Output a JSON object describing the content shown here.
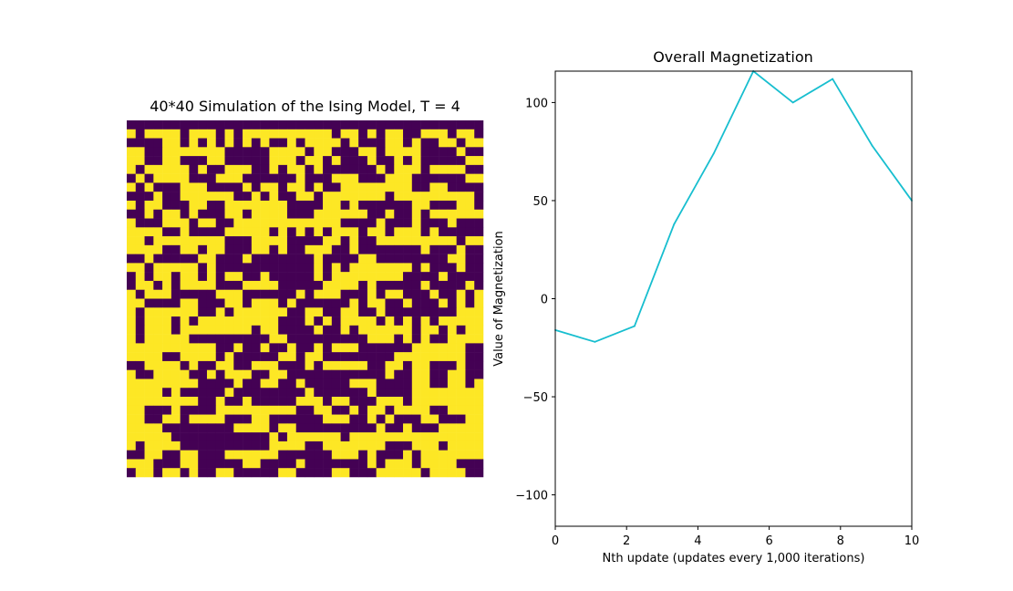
{
  "chart_data": [
    {
      "type": "heatmap",
      "title": "40*40 Simulation of the Ising Model, T = 4",
      "axes": "off",
      "grid_size": [
        40,
        40
      ],
      "colors": {
        "up": "#fde725",
        "down": "#440154"
      },
      "rows": [
        "0000000000000000000000000000000000000000",
        "1011110111010111111111101101011001110110",
        "0000110101010101001011110100011010011011",
        "1100111111100000111101100011011110000100",
        "1100110001100000111011010001001010000011",
        "1011111010011100101101000000101110111100",
        "0101111000111000000100011100011100000011",
        "1010001110000101101101001111111100110000",
        "0001001111110010100110111111101111111110",
        "1011000110011111110000110100000011000110",
        "0010110100011011110001111110010010111111",
        "1000111011001111111111110000100010001000",
        "1111001000011111010101011101101110100000",
        "1101111111100011110000110100111111111011",
        "1111001101100011010011100100000001000100",
        "0010000011000100000001000011000000001100",
        "1101111101000000000001010111111101000100",
        "0101101101011001000001011111111000010000",
        "0110101111000111100000111101000001000010",
        "1011100000111000000101110001011000100101",
        "1100001100011011101000000101100100010101",
        "1011111100101111110011001100100000000111",
        "1011101011111111100010101111010101011111",
        "1011101111111101100001001011111101101011",
        "1011111000000000110000000001110101001111",
        "1111111111001001001001011100000011111100",
        "1111001111010000011011000000001111111100",
        "0011110100110011100010111110011011000100",
        "1001111001011100110000000000010011001100",
        "1111111100001001100100000111000011001101",
        "1111010000010000000010000001000011111111",
        "1111111100100100000111011000111011111111",
        "1100010000111111111001100101101111001111",
        "1100110111100011000000111001010001100011",
        "1111000000001111011000000000100100011111",
        "1111100000000000101111110111111111111111",
        "1011110000000000111100111111100011101111",
        "0011001100011111100000011101000101111111",
        "1110001100000110000100000001011101111000",
        "0110110100110000011000011000111110111100"
      ]
    },
    {
      "type": "line",
      "title": "Overall Magnetization",
      "xlabel": "Nth update (updates every 1,000 iterations)",
      "ylabel": "Value of Magnetization",
      "xlim": [
        0,
        10
      ],
      "ylim": [
        -116,
        116
      ],
      "xticks": [
        0,
        2,
        4,
        6,
        8,
        10
      ],
      "yticks": [
        -100,
        -50,
        0,
        50,
        100
      ],
      "grid": false,
      "series": [
        {
          "color": "#17becf",
          "x": [
            0,
            1.111,
            2.222,
            3.333,
            4.444,
            5.556,
            6.667,
            7.778,
            8.889,
            10
          ],
          "y": [
            -16,
            -22,
            -14,
            38,
            74,
            116,
            100,
            112,
            78,
            50
          ]
        }
      ]
    }
  ]
}
